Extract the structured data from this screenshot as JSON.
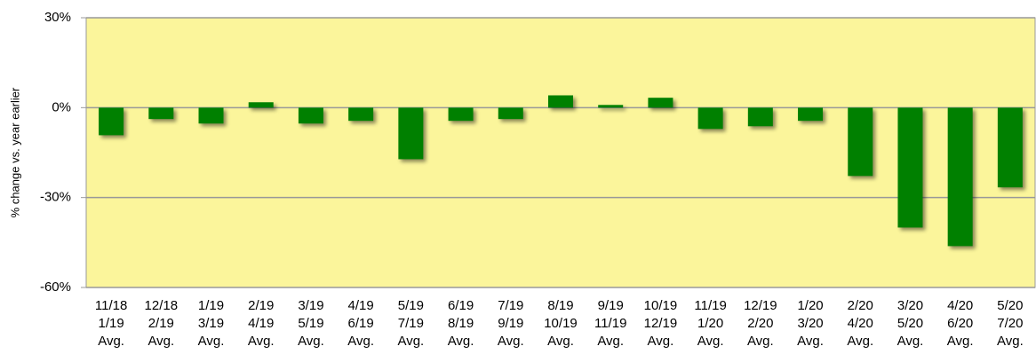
{
  "chart_data": {
    "type": "bar",
    "y_label": "% change vs. year earlier",
    "categories": [
      [
        "11/18",
        "1/19",
        "Avg."
      ],
      [
        "12/18",
        "2/19",
        "Avg."
      ],
      [
        "1/19",
        "3/19",
        "Avg."
      ],
      [
        "2/19",
        "4/19",
        "Avg."
      ],
      [
        "3/19",
        "5/19",
        "Avg."
      ],
      [
        "4/19",
        "6/19",
        "Avg."
      ],
      [
        "5/19",
        "7/19",
        "Avg."
      ],
      [
        "6/19",
        "8/19",
        "Avg."
      ],
      [
        "7/19",
        "9/19",
        "Avg."
      ],
      [
        "8/19",
        "10/19",
        "Avg."
      ],
      [
        "9/19",
        "11/19",
        "Avg."
      ],
      [
        "10/19",
        "12/19",
        "Avg."
      ],
      [
        "11/19",
        "1/20",
        "Avg."
      ],
      [
        "12/19",
        "2/20",
        "Avg."
      ],
      [
        "1/20",
        "3/20",
        "Avg."
      ],
      [
        "2/20",
        "4/20",
        "Avg."
      ],
      [
        "3/20",
        "5/20",
        "Avg."
      ],
      [
        "4/20",
        "6/20",
        "Avg."
      ],
      [
        "5/20",
        "7/20",
        "Avg."
      ]
    ],
    "values": [
      -9.2,
      -3.8,
      -5.3,
      1.8,
      -5.3,
      -4.4,
      -17.2,
      -4.4,
      -3.8,
      4.1,
      0.9,
      3.3,
      -7.1,
      -6.2,
      -4.4,
      -22.8,
      -40,
      -46.2,
      -26.6
    ],
    "color": "#008000",
    "background": "#fbf59b",
    "ylim": [
      -60,
      30
    ],
    "yticks": [
      {
        "value": -60,
        "label": "-60%"
      },
      {
        "value": -30,
        "label": "-30%"
      },
      {
        "value": 0,
        "label": "0%"
      },
      {
        "value": 30,
        "label": "30%"
      }
    ],
    "grid": true
  }
}
